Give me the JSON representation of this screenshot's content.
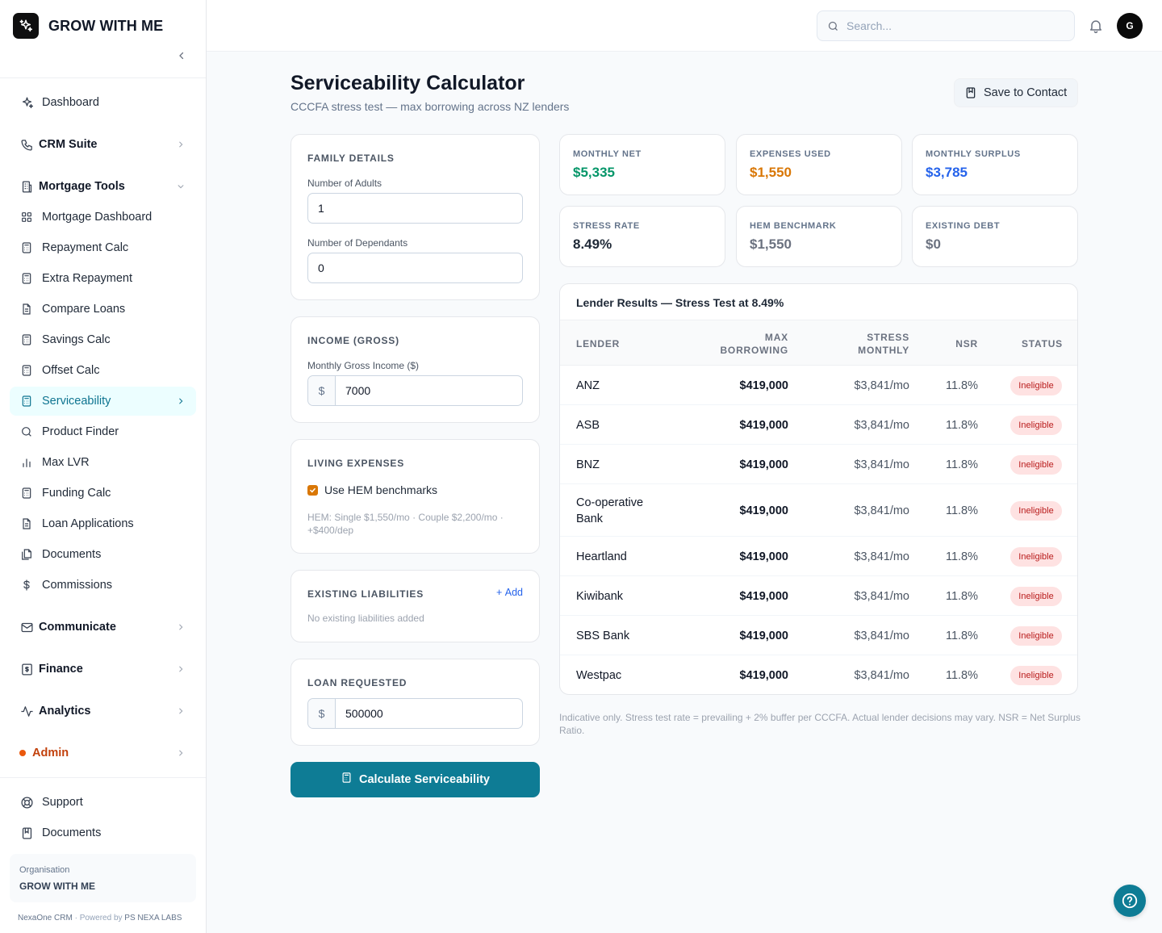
{
  "brand": {
    "name": "GROW WITH ME"
  },
  "sidebar": {
    "dashboard": "Dashboard",
    "crm_suite": "CRM Suite",
    "mortgage_tools": "Mortgage Tools",
    "tools": [
      {
        "label": "Mortgage Dashboard",
        "icon": "grid-icon"
      },
      {
        "label": "Repayment Calc",
        "icon": "calculator-icon"
      },
      {
        "label": "Extra Repayment",
        "icon": "calculator-icon"
      },
      {
        "label": "Compare Loans",
        "icon": "document-icon"
      },
      {
        "label": "Savings Calc",
        "icon": "calculator-icon"
      },
      {
        "label": "Offset Calc",
        "icon": "calculator-icon"
      },
      {
        "label": "Serviceability",
        "icon": "calculator-icon",
        "active": true
      },
      {
        "label": "Product Finder",
        "icon": "search-icon"
      },
      {
        "label": "Max LVR",
        "icon": "bar-chart-icon"
      },
      {
        "label": "Funding Calc",
        "icon": "calculator-icon"
      },
      {
        "label": "Loan Applications",
        "icon": "document-icon"
      },
      {
        "label": "Documents",
        "icon": "files-icon"
      },
      {
        "label": "Commissions",
        "icon": "dollar-icon"
      }
    ],
    "communicate": "Communicate",
    "finance": "Finance",
    "analytics": "Analytics",
    "admin": "Admin",
    "support": "Support",
    "documents": "Documents",
    "org_label": "Organisation",
    "org_name": "GROW WITH ME",
    "footer_app": "NexaOne CRM",
    "footer_sep": " · Powered by ",
    "footer_company": "PS NEXA LABS"
  },
  "header": {
    "search_placeholder": "Search...",
    "avatar_initial": "G"
  },
  "page": {
    "title": "Serviceability Calculator",
    "subtitle": "CCCFA stress test — max borrowing across NZ lenders",
    "save_label": "Save to Contact"
  },
  "family": {
    "title": "FAMILY DETAILS",
    "adults_label": "Number of Adults",
    "adults_value": "1",
    "dependants_label": "Number of Dependants",
    "dependants_value": "0"
  },
  "income": {
    "title": "INCOME (GROSS)",
    "monthly_label": "Monthly Gross Income ($)",
    "currency": "$",
    "monthly_value": "7000"
  },
  "expenses": {
    "title": "LIVING EXPENSES",
    "hem_label": "Use HEM benchmarks",
    "hem_checked": true,
    "hem_note": "HEM: Single $1,550/mo · Couple $2,200/mo · +$400/dep"
  },
  "liabilities": {
    "title": "EXISTING LIABILITIES",
    "add_label": "Add",
    "empty_note": "No existing liabilities added"
  },
  "loan": {
    "title": "LOAN REQUESTED",
    "currency": "$",
    "value": "500000"
  },
  "calculate_label": "Calculate Serviceability",
  "stats": {
    "monthly_net": {
      "label": "MONTHLY NET",
      "value": "$5,335",
      "color": "#059669"
    },
    "expenses_used": {
      "label": "EXPENSES USED",
      "value": "$1,550",
      "color": "#d97706"
    },
    "monthly_surplus": {
      "label": "MONTHLY SURPLUS",
      "value": "$3,785",
      "color": "#2563eb"
    },
    "stress_rate": {
      "label": "STRESS RATE",
      "value": "8.49%",
      "color": "#1f2937"
    },
    "hem_benchmark": {
      "label": "HEM BENCHMARK",
      "value": "$1,550",
      "color": "#6b7280"
    },
    "existing_debt": {
      "label": "EXISTING DEBT",
      "value": "$0",
      "color": "#6b7280"
    }
  },
  "results": {
    "title": "Lender Results — Stress Test at 8.49%",
    "columns": {
      "lender": "LENDER",
      "max_line1": "MAX",
      "max_line2": "BORROWING",
      "stress_line1": "STRESS",
      "stress_line2": "MONTHLY",
      "nsr": "NSR",
      "status": "STATUS"
    },
    "rows": [
      {
        "lender": "ANZ",
        "max": "$419,000",
        "monthly": "$3,841/mo",
        "nsr": "11.8%",
        "status": "Ineligible"
      },
      {
        "lender": "ASB",
        "max": "$419,000",
        "monthly": "$3,841/mo",
        "nsr": "11.8%",
        "status": "Ineligible"
      },
      {
        "lender": "BNZ",
        "max": "$419,000",
        "monthly": "$3,841/mo",
        "nsr": "11.8%",
        "status": "Ineligible"
      },
      {
        "lender": "Co-operative Bank",
        "max": "$419,000",
        "monthly": "$3,841/mo",
        "nsr": "11.8%",
        "status": "Ineligible"
      },
      {
        "lender": "Heartland",
        "max": "$419,000",
        "monthly": "$3,841/mo",
        "nsr": "11.8%",
        "status": "Ineligible"
      },
      {
        "lender": "Kiwibank",
        "max": "$419,000",
        "monthly": "$3,841/mo",
        "nsr": "11.8%",
        "status": "Ineligible"
      },
      {
        "lender": "SBS Bank",
        "max": "$419,000",
        "monthly": "$3,841/mo",
        "nsr": "11.8%",
        "status": "Ineligible"
      },
      {
        "lender": "Westpac",
        "max": "$419,000",
        "monthly": "$3,841/mo",
        "nsr": "11.8%",
        "status": "Ineligible"
      }
    ]
  },
  "disclaimer": "Indicative only. Stress test rate = prevailing + 2% buffer per CCCFA. Actual lender decisions may vary. NSR = Net Surplus Ratio."
}
